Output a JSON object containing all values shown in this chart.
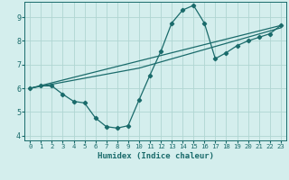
{
  "xlabel": "Humidex (Indice chaleur)",
  "xlim": [
    -0.5,
    23.5
  ],
  "ylim": [
    3.8,
    9.65
  ],
  "xticks": [
    0,
    1,
    2,
    3,
    4,
    5,
    6,
    7,
    8,
    9,
    10,
    11,
    12,
    13,
    14,
    15,
    16,
    17,
    18,
    19,
    20,
    21,
    22,
    23
  ],
  "yticks": [
    4,
    5,
    6,
    7,
    8,
    9
  ],
  "background_color": "#d4eeed",
  "grid_color": "#b0d5d2",
  "line_color": "#1a6b6b",
  "line1_x": [
    0,
    1,
    2,
    3,
    4,
    5,
    6,
    7,
    8,
    9,
    10,
    11,
    12,
    13,
    14,
    15,
    16,
    17,
    18,
    19,
    20,
    21,
    22,
    23
  ],
  "line1_y": [
    6.0,
    6.1,
    6.1,
    5.75,
    5.45,
    5.38,
    4.75,
    4.38,
    4.32,
    4.42,
    5.5,
    6.55,
    7.55,
    8.75,
    9.3,
    9.5,
    8.75,
    7.25,
    7.5,
    7.8,
    8.0,
    8.15,
    8.3,
    8.65
  ],
  "line2_x": [
    0,
    23
  ],
  "line2_y": [
    6.0,
    8.65
  ],
  "line3_x": [
    0,
    10,
    23
  ],
  "line3_y": [
    6.0,
    6.85,
    8.55
  ],
  "marker": "D",
  "marker_size": 2.2,
  "lw": 0.9
}
